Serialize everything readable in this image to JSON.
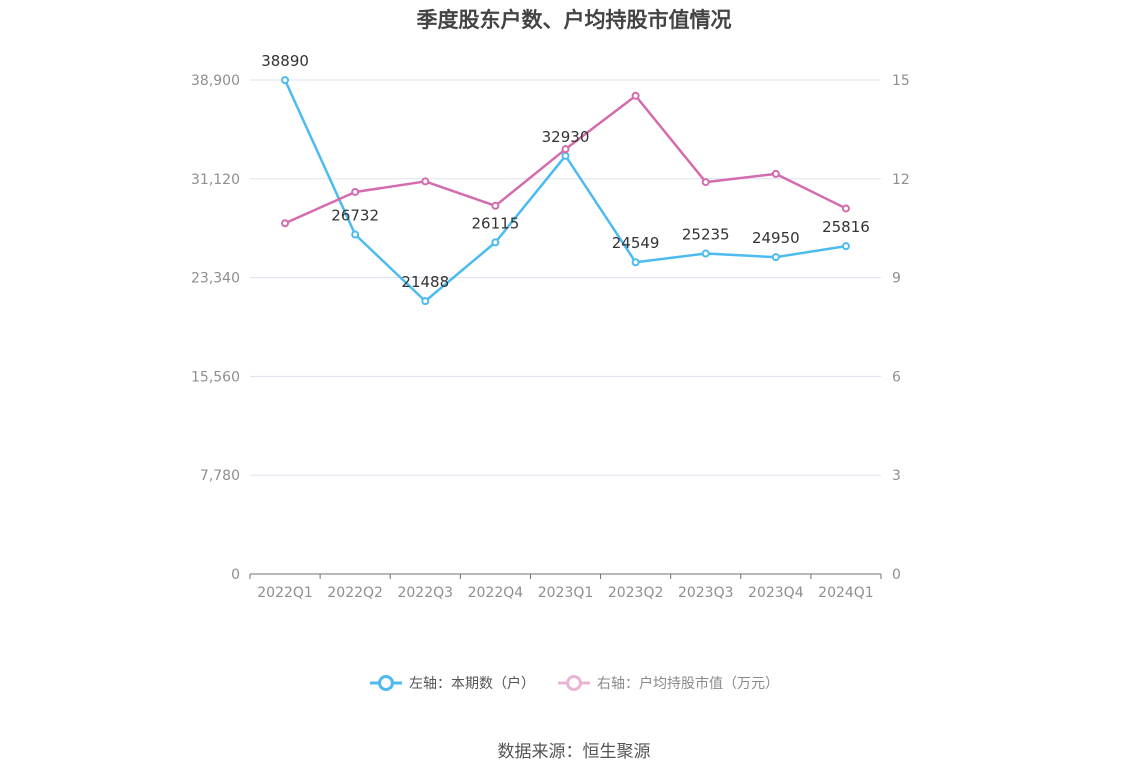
{
  "chart_data": {
    "type": "line",
    "title": "季度股东户数、户均持股市值情况",
    "categories": [
      "2022Q1",
      "2022Q2",
      "2022Q3",
      "2022Q4",
      "2023Q1",
      "2023Q2",
      "2023Q3",
      "2023Q4",
      "2024Q1"
    ],
    "left_axis": {
      "ticks": [
        "0",
        "7,780",
        "15,560",
        "23,340",
        "31,120",
        "38,900"
      ],
      "min": 0,
      "max": 38900
    },
    "right_axis": {
      "ticks": [
        "0",
        "3",
        "6",
        "9",
        "12",
        "15"
      ],
      "min": 0,
      "max": 15
    },
    "series": [
      {
        "name": "左轴：本期数（户）",
        "axis": "left",
        "color": "#4cbbf0",
        "values": [
          38890,
          26732,
          21488,
          26115,
          32930,
          24549,
          25235,
          24950,
          25816
        ],
        "labels": [
          "38890",
          "26732",
          "21488",
          "26115",
          "32930",
          "24549",
          "25235",
          "24950",
          "25816"
        ]
      },
      {
        "name": "右轴：户均持股市值（万元）",
        "axis": "right",
        "color": "#d46bae",
        "values": [
          10.65,
          11.6,
          11.92,
          11.18,
          12.9,
          14.52,
          11.9,
          12.15,
          11.1
        ]
      }
    ],
    "grid": true,
    "legend_position": "bottom"
  },
  "source_text": "数据来源：恒生聚源"
}
